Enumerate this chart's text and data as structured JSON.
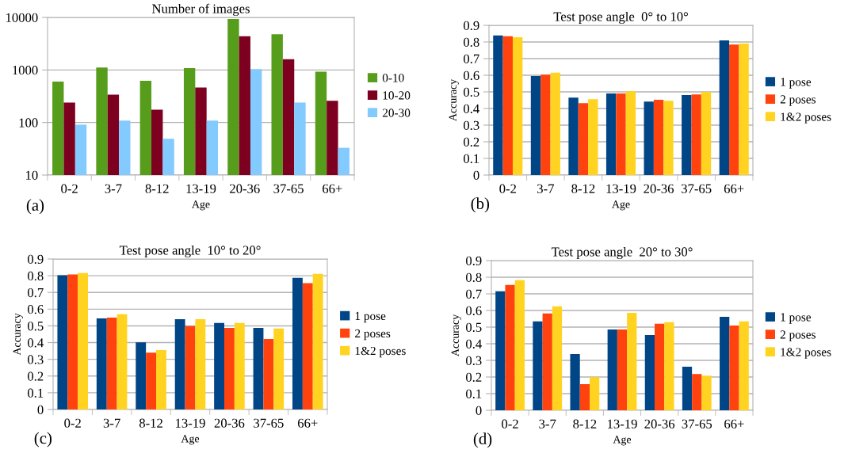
{
  "chart_data": [
    {
      "type": "bar",
      "title": "Number of images",
      "xlabel": "Age",
      "annotations": [
        "(a)"
      ],
      "log": true,
      "grid": "y",
      "legend": "right",
      "categories": [
        "0-2",
        "3-7",
        "8-12",
        "13-19",
        "20-36",
        "37-65",
        "66+"
      ],
      "ylim": [
        10,
        10000
      ],
      "yticks": [
        10,
        100,
        1000,
        10000
      ],
      "series": [
        {
          "name": "0-10",
          "color": "#579d1c",
          "values": [
            600,
            1110,
            620,
            1080,
            9300,
            4800,
            930
          ]
        },
        {
          "name": "10-20",
          "color": "#7e0021",
          "values": [
            240,
            340,
            176,
            465,
            4400,
            1600,
            258
          ]
        },
        {
          "name": "20-30",
          "color": "#83caff",
          "values": [
            91,
            109,
            49,
            109,
            1040,
            240,
            33
          ]
        }
      ]
    },
    {
      "type": "bar",
      "title": "Test pose angle  0° to 10°",
      "xlabel": "Age",
      "ylabel": "Accuracy",
      "annotations": [
        "(b)"
      ],
      "grid": "y",
      "legend": "right",
      "categories": [
        "0-2",
        "3-7",
        "8-12",
        "13-19",
        "20-36",
        "37-65",
        "66+"
      ],
      "ylim": [
        0,
        0.9
      ],
      "yticks": [
        0,
        0.1,
        0.2,
        0.3,
        0.4,
        0.5,
        0.6,
        0.7,
        0.8,
        0.9
      ],
      "series": [
        {
          "name": "1 pose",
          "color": "#004586",
          "values": [
            0.839,
            0.595,
            0.466,
            0.49,
            0.442,
            0.481,
            0.81
          ]
        },
        {
          "name": "2 poses",
          "color": "#ff420e",
          "values": [
            0.834,
            0.603,
            0.432,
            0.49,
            0.452,
            0.485,
            0.785
          ]
        },
        {
          "name": "1&2 poses",
          "color": "#ffd320",
          "values": [
            0.829,
            0.615,
            0.456,
            0.503,
            0.447,
            0.5,
            0.79
          ]
        }
      ]
    },
    {
      "type": "bar",
      "title": "Test pose angle  10° to 20°",
      "xlabel": "Age",
      "ylabel": "Accuracy",
      "annotations": [
        "(c)"
      ],
      "grid": "y",
      "legend": "right",
      "categories": [
        "0-2",
        "3-7",
        "8-12",
        "13-19",
        "20-36",
        "37-65",
        "66+"
      ],
      "ylim": [
        0,
        0.9
      ],
      "yticks": [
        0,
        0.1,
        0.2,
        0.3,
        0.4,
        0.5,
        0.6,
        0.7,
        0.8,
        0.9
      ],
      "series": [
        {
          "name": "1 pose",
          "color": "#004586",
          "values": [
            0.803,
            0.545,
            0.402,
            0.54,
            0.517,
            0.488,
            0.788
          ]
        },
        {
          "name": "2 poses",
          "color": "#ff420e",
          "values": [
            0.808,
            0.55,
            0.34,
            0.498,
            0.488,
            0.422,
            0.755
          ]
        },
        {
          "name": "1&2 poses",
          "color": "#ffd320",
          "values": [
            0.816,
            0.57,
            0.355,
            0.54,
            0.517,
            0.484,
            0.811
          ]
        }
      ]
    },
    {
      "type": "bar",
      "title": "Test pose angle  20° to 30°",
      "xlabel": "Age",
      "ylabel": "Accuracy",
      "annotations": [
        "(d)"
      ],
      "grid": "y",
      "legend": "right",
      "categories": [
        "0-2",
        "3-7",
        "8-12",
        "13-19",
        "20-36",
        "37-65",
        "66+"
      ],
      "ylim": [
        0,
        0.9
      ],
      "yticks": [
        0,
        0.1,
        0.2,
        0.3,
        0.4,
        0.5,
        0.6,
        0.7,
        0.8,
        0.9
      ],
      "series": [
        {
          "name": "1 pose",
          "color": "#004586",
          "values": [
            0.716,
            0.535,
            0.338,
            0.486,
            0.452,
            0.262,
            0.562
          ]
        },
        {
          "name": "2 poses",
          "color": "#ff420e",
          "values": [
            0.754,
            0.582,
            0.157,
            0.486,
            0.52,
            0.218,
            0.509
          ]
        },
        {
          "name": "1&2 poses",
          "color": "#ffd320",
          "values": [
            0.782,
            0.625,
            0.199,
            0.586,
            0.53,
            0.208,
            0.535
          ]
        }
      ]
    }
  ]
}
